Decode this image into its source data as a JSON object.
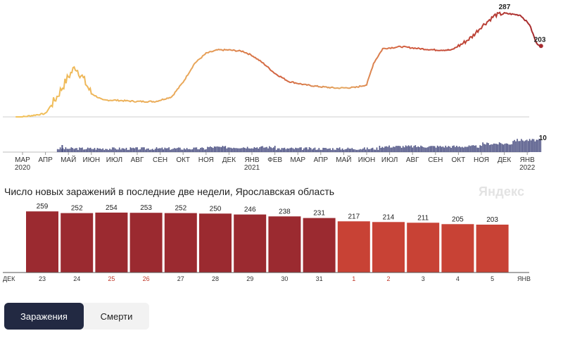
{
  "chart_data": [
    {
      "type": "line",
      "x_ticks": [
        {
          "label": "МАР",
          "sub": "2020"
        },
        {
          "label": "АПР",
          "sub": ""
        },
        {
          "label": "МАЙ",
          "sub": ""
        },
        {
          "label": "ИЮН",
          "sub": ""
        },
        {
          "label": "ИЮЛ",
          "sub": ""
        },
        {
          "label": "АВГ",
          "sub": ""
        },
        {
          "label": "СЕН",
          "sub": ""
        },
        {
          "label": "ОКТ",
          "sub": ""
        },
        {
          "label": "НОЯ",
          "sub": ""
        },
        {
          "label": "ДЕК",
          "sub": ""
        },
        {
          "label": "ЯНВ",
          "sub": "2021"
        },
        {
          "label": "ФЕВ",
          "sub": ""
        },
        {
          "label": "МАР",
          "sub": ""
        },
        {
          "label": "АПР",
          "sub": ""
        },
        {
          "label": "МАЙ",
          "sub": ""
        },
        {
          "label": "ИЮН",
          "sub": ""
        },
        {
          "label": "ИЮЛ",
          "sub": ""
        },
        {
          "label": "АВГ",
          "sub": ""
        },
        {
          "label": "СЕН",
          "sub": ""
        },
        {
          "label": "ОКТ",
          "sub": ""
        },
        {
          "label": "НОЯ",
          "sub": ""
        },
        {
          "label": "ДЕК",
          "sub": ""
        },
        {
          "label": "ЯНВ",
          "sub": "2022"
        }
      ],
      "points": [
        [
          0,
          0
        ],
        [
          1,
          5
        ],
        [
          1.5,
          30
        ],
        [
          2,
          60
        ],
        [
          2.3,
          75
        ],
        [
          2.6,
          60
        ],
        [
          3,
          35
        ],
        [
          3.5,
          25
        ],
        [
          4,
          25
        ],
        [
          5,
          23
        ],
        [
          5.8,
          23
        ],
        [
          6.5,
          30
        ],
        [
          7,
          52
        ],
        [
          7.5,
          80
        ],
        [
          8,
          95
        ],
        [
          8.5,
          100
        ],
        [
          9,
          100
        ],
        [
          9.6,
          98
        ],
        [
          10,
          92
        ],
        [
          10.5,
          80
        ],
        [
          11,
          65
        ],
        [
          11.6,
          53
        ],
        [
          12.3,
          48
        ],
        [
          13,
          45
        ],
        [
          13.7,
          43
        ],
        [
          14.5,
          44
        ],
        [
          15,
          48
        ],
        [
          15.3,
          80
        ],
        [
          15.7,
          102
        ],
        [
          16.5,
          105
        ],
        [
          17.3,
          102
        ],
        [
          18,
          100
        ],
        [
          18.7,
          100
        ],
        [
          19.2,
          110
        ],
        [
          19.6,
          120
        ],
        [
          20,
          135
        ],
        [
          20.6,
          152
        ],
        [
          21,
          155
        ],
        [
          21.7,
          152
        ],
        [
          22.1,
          138
        ],
        [
          22.4,
          110
        ],
        [
          22.6,
          106
        ]
      ],
      "peak_label": "287",
      "end_label": "203",
      "deaths_end_label": "10"
    },
    {
      "type": "bar",
      "title": "Число новых заражений в последние две недели, Ярославская область",
      "categories": [
        "23",
        "24",
        "25",
        "26",
        "27",
        "28",
        "29",
        "30",
        "31",
        "1",
        "2",
        "3",
        "4",
        "5"
      ],
      "values": [
        259,
        252,
        254,
        253,
        252,
        250,
        246,
        238,
        231,
        217,
        214,
        211,
        205,
        203
      ],
      "weekend": [
        false,
        false,
        true,
        true,
        false,
        false,
        false,
        false,
        false,
        true,
        true,
        false,
        false,
        false
      ],
      "month_start": "ДЕК",
      "month_end": "ЯНВ",
      "colors": {
        "old": "#9b2a30",
        "new": "#c84235"
      }
    }
  ],
  "brand": "Яндекс",
  "toggle": {
    "infections_label": "Заражения",
    "deaths_label": "Смерти"
  }
}
